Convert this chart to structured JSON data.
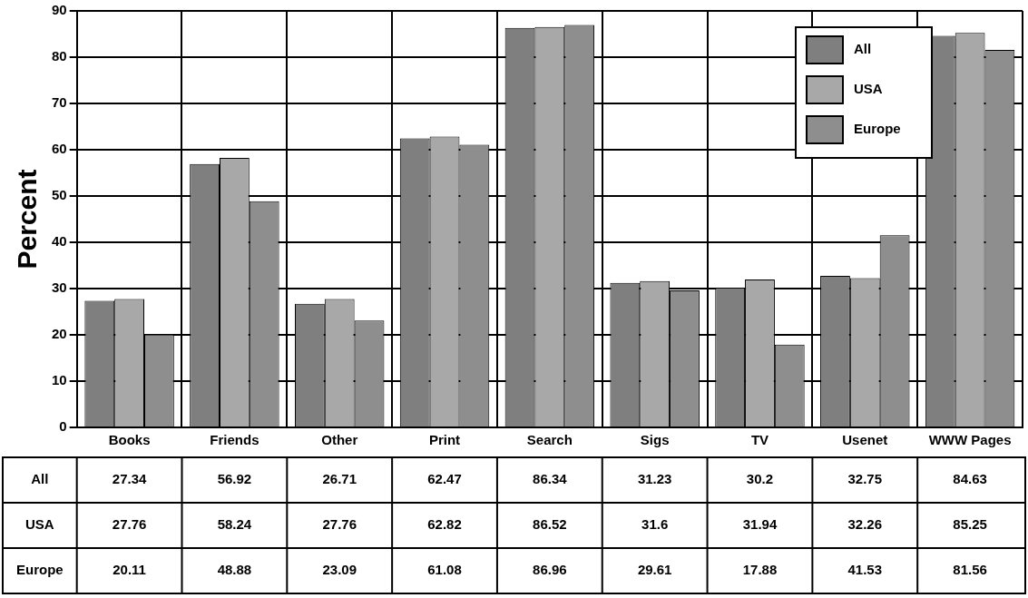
{
  "chart_data": {
    "type": "bar",
    "ylabel": "Percent",
    "categories": [
      "Books",
      "Friends",
      "Other",
      "Print",
      "Search",
      "Sigs",
      "TV",
      "Usenet",
      "WWW Pages"
    ],
    "series": [
      {
        "name": "All",
        "color": "#7f7f7f",
        "values": [
          27.34,
          56.92,
          26.71,
          62.47,
          86.34,
          31.23,
          30.2,
          32.75,
          84.63
        ]
      },
      {
        "name": "USA",
        "color": "#a8a8a8",
        "values": [
          27.76,
          58.24,
          27.76,
          62.82,
          86.52,
          31.6,
          31.94,
          32.26,
          85.25
        ]
      },
      {
        "name": "Europe",
        "color": "#8e8e8e",
        "values": [
          20.11,
          48.88,
          23.09,
          61.08,
          86.96,
          29.61,
          17.88,
          41.53,
          81.56
        ]
      }
    ],
    "ylim": [
      0,
      90
    ],
    "yticks": [
      0,
      10,
      20,
      30,
      40,
      50,
      60,
      70,
      80,
      90
    ],
    "grid": true,
    "legend": "top right",
    "data_labels": true
  }
}
